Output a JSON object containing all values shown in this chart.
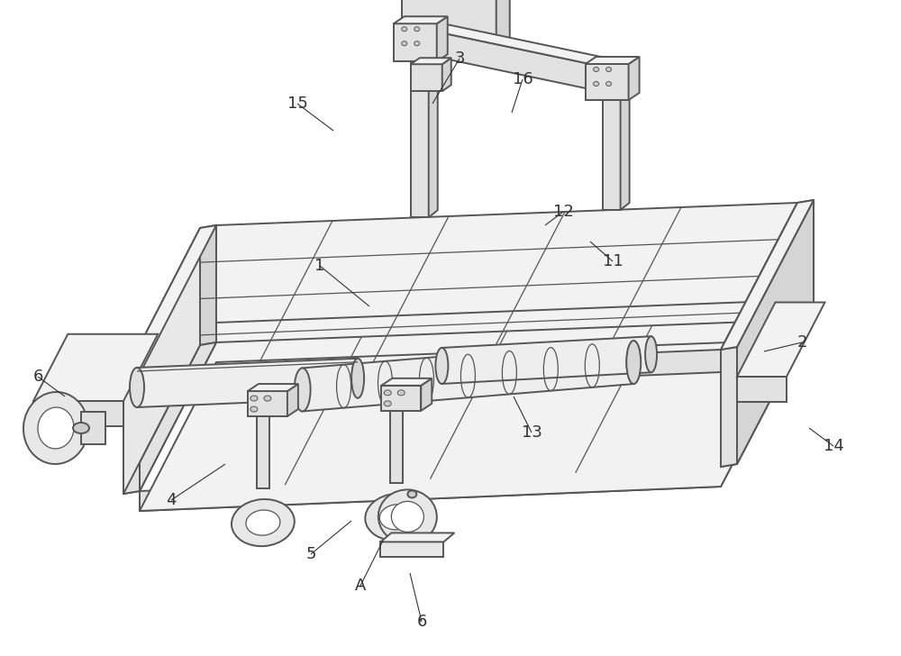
{
  "bg_color": "#ffffff",
  "line_color": "#555555",
  "fig_width": 10.0,
  "fig_height": 7.28,
  "label_fontsize": 13,
  "lw_main": 1.4,
  "lw_thin": 0.9,
  "fc_top": "#f2f2f2",
  "fc_front": "#e2e2e2",
  "fc_right": "#d5d5d5",
  "fc_left": "#e8e8e8",
  "fc_roller": "#eeeeee",
  "fc_white": "#ffffff"
}
